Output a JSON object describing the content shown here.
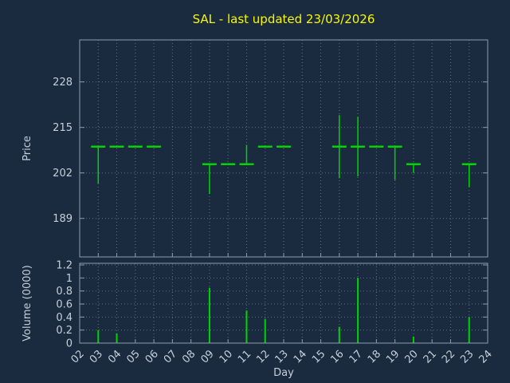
{
  "colors": {
    "background": "#1a2b40",
    "title": "#f8f800",
    "series": "#00d400",
    "axis_text": "#c6cfd8",
    "frame": "#8e9cab",
    "grid": "#b4c3d2"
  },
  "chart_data": {
    "type": "hlc-with-volume",
    "title": "SAL - last updated 23/03/2026",
    "xlabel": "Day",
    "x_axis": {
      "ticks": [
        "02",
        "03",
        "04",
        "05",
        "06",
        "07",
        "08",
        "09",
        "10",
        "11",
        "12",
        "13",
        "14",
        "15",
        "16",
        "17",
        "18",
        "19",
        "20",
        "21",
        "22",
        "23",
        "24"
      ],
      "range": [
        2,
        24
      ]
    },
    "price_axis": {
      "label": "Price",
      "ticks": [
        189,
        202,
        215,
        228
      ],
      "range": [
        178,
        240
      ]
    },
    "volume_axis": {
      "label": "Volume (0000)",
      "ticks": [
        0,
        0.2,
        0.4,
        0.6,
        0.8,
        1,
        1.2
      ],
      "range": [
        0,
        1.225
      ]
    },
    "price_marks": [
      {
        "day": 3,
        "close": 209.5,
        "high": 209.5,
        "low": 199
      },
      {
        "day": 4,
        "close": 209.5,
        "high": 209.5,
        "low": 209.5
      },
      {
        "day": 5,
        "close": 209.5,
        "high": 209.5,
        "low": 209.5
      },
      {
        "day": 6,
        "close": 209.5,
        "high": 209.5,
        "low": 209.5
      },
      {
        "day": 9,
        "close": 204.5,
        "high": 204.5,
        "low": 196
      },
      {
        "day": 10,
        "close": 204.5,
        "high": 204.5,
        "low": 204.5
      },
      {
        "day": 11,
        "close": 204.5,
        "high": 210,
        "low": 204.5
      },
      {
        "day": 12,
        "close": 209.5,
        "high": 209.5,
        "low": 209.5
      },
      {
        "day": 13,
        "close": 209.5,
        "high": 209.5,
        "low": 209.5
      },
      {
        "day": 16,
        "close": 209.5,
        "high": 218.5,
        "low": 200.5
      },
      {
        "day": 17,
        "close": 209.5,
        "high": 218,
        "low": 201
      },
      {
        "day": 18,
        "close": 209.5,
        "high": 209.5,
        "low": 209.5
      },
      {
        "day": 19,
        "close": 209.5,
        "high": 209.5,
        "low": 200
      },
      {
        "day": 20,
        "close": 204.5,
        "high": 204.5,
        "low": 202
      },
      {
        "day": 23,
        "close": 204.5,
        "high": 204.5,
        "low": 198
      }
    ],
    "volume_bars": [
      {
        "day": 3,
        "value": 0.2
      },
      {
        "day": 4,
        "value": 0.15
      },
      {
        "day": 9,
        "value": 0.85
      },
      {
        "day": 11,
        "value": 0.5
      },
      {
        "day": 12,
        "value": 0.37
      },
      {
        "day": 16,
        "value": 0.25
      },
      {
        "day": 17,
        "value": 1.0
      },
      {
        "day": 20,
        "value": 0.1
      },
      {
        "day": 23,
        "value": 0.4
      }
    ]
  }
}
